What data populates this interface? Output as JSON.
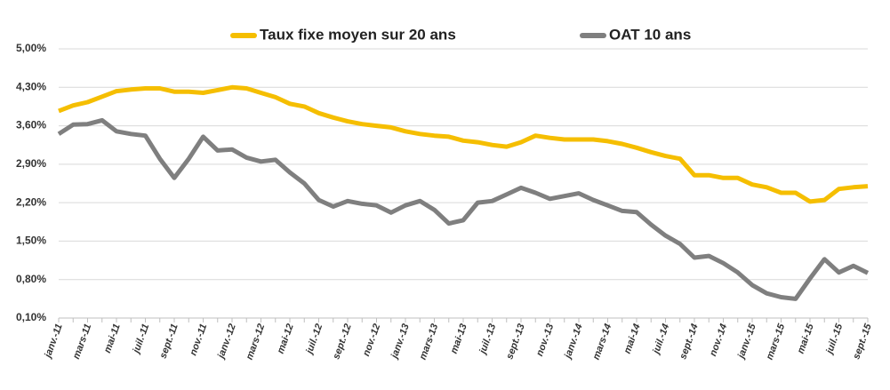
{
  "chart_data": {
    "type": "line",
    "categories": [
      "janv.-11",
      null,
      "mars-11",
      null,
      "mai-11",
      null,
      "juil.-11",
      null,
      "sept.-11",
      null,
      "nov.-11",
      null,
      "janv.-12",
      null,
      "mars-12",
      null,
      "mai-12",
      null,
      "juil.-12",
      null,
      "sept.-12",
      null,
      "nov.-12",
      null,
      "janv.-13",
      null,
      "mars-13",
      null,
      "mai-13",
      null,
      "juil.-13",
      null,
      "sept.-13",
      null,
      "nov.-13",
      null,
      "janv.-14",
      null,
      "mars-14",
      null,
      "mai-14",
      null,
      "juil.-14",
      null,
      "sept.-14",
      null,
      "nov.-14",
      null,
      "janv.-15",
      null,
      "mars-15",
      null,
      "mai-15",
      null,
      "juil.-15",
      null,
      "sept.-15"
    ],
    "series": [
      {
        "name": "Taux fixe moyen sur 20 ans",
        "color": "#f5be00",
        "values": [
          3.87,
          3.97,
          4.03,
          4.13,
          4.23,
          4.26,
          4.28,
          4.28,
          4.22,
          4.22,
          4.2,
          4.25,
          4.3,
          4.28,
          4.2,
          4.12,
          4.0,
          3.95,
          3.83,
          3.75,
          3.68,
          3.63,
          3.6,
          3.57,
          3.5,
          3.45,
          3.42,
          3.4,
          3.33,
          3.3,
          3.25,
          3.22,
          3.3,
          3.42,
          3.38,
          3.35,
          3.35,
          3.35,
          3.32,
          3.27,
          3.2,
          3.12,
          3.05,
          3.0,
          2.7,
          2.7,
          2.65,
          2.65,
          2.53,
          2.48,
          2.38,
          2.38,
          2.22,
          2.25,
          2.45,
          2.48,
          2.5
        ]
      },
      {
        "name": "OAT 10 ans",
        "color": "#7f7f7f",
        "values": [
          3.45,
          3.62,
          3.63,
          3.7,
          3.5,
          3.45,
          3.42,
          3.0,
          2.65,
          3.0,
          3.4,
          3.15,
          3.17,
          3.02,
          2.95,
          2.98,
          2.75,
          2.55,
          2.25,
          2.13,
          2.23,
          2.18,
          2.15,
          2.02,
          2.15,
          2.23,
          2.07,
          1.82,
          1.88,
          2.2,
          2.23,
          2.35,
          2.47,
          2.38,
          2.27,
          2.32,
          2.37,
          2.25,
          2.15,
          2.05,
          2.03,
          1.8,
          1.6,
          1.45,
          1.2,
          1.23,
          1.1,
          0.93,
          0.7,
          0.55,
          0.48,
          0.45,
          0.82,
          1.17,
          0.93,
          1.05,
          0.92
        ]
      }
    ],
    "ylim": [
      0.1,
      5.0
    ],
    "yticks": [
      {
        "value": 0.1,
        "label": "0,10%"
      },
      {
        "value": 0.8,
        "label": "0,80%"
      },
      {
        "value": 1.5,
        "label": "1,50%"
      },
      {
        "value": 2.2,
        "label": "2,20%"
      },
      {
        "value": 2.9,
        "label": "2,90%"
      },
      {
        "value": 3.6,
        "label": "3,60%"
      },
      {
        "value": 4.3,
        "label": "4,30%"
      },
      {
        "value": 5.0,
        "label": "5,00%"
      }
    ],
    "grid": true
  }
}
